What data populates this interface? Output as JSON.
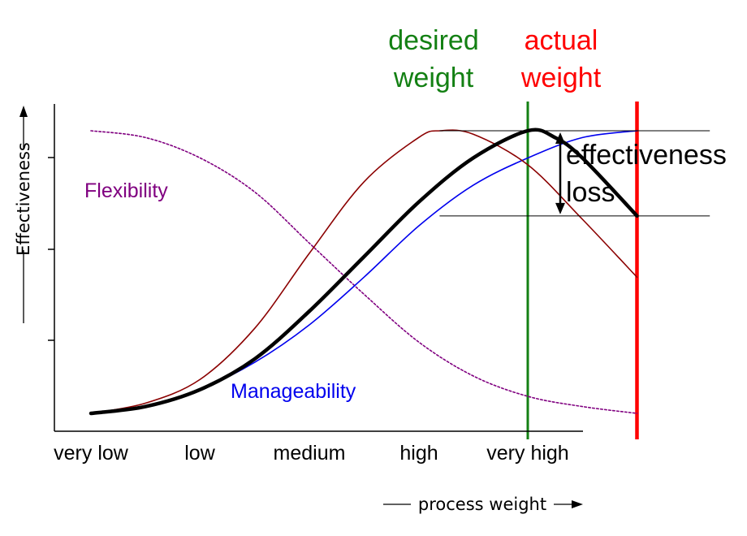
{
  "chart_data": {
    "type": "line",
    "title": "",
    "xlabel": "process weight",
    "ylabel": "Effectiveness",
    "categories": [
      "very low",
      "low",
      "medium",
      "high",
      "very high"
    ],
    "xlim": [
      -0.5,
      5.2
    ],
    "ylim": [
      0,
      1
    ],
    "grid": false,
    "legend": "none",
    "series": [
      {
        "name": "Flexibility",
        "color": "#800080",
        "style": "dotted",
        "x": [
          0.0,
          0.5,
          1.0,
          1.5,
          2.0,
          2.5,
          3.0,
          3.5,
          4.0,
          4.5,
          5.0
        ],
        "y": [
          0.88,
          0.86,
          0.8,
          0.7,
          0.55,
          0.4,
          0.26,
          0.16,
          0.1,
          0.07,
          0.05
        ]
      },
      {
        "name": "Manageability",
        "color": "#0000ee",
        "style": "solid",
        "x": [
          0.0,
          0.5,
          1.0,
          1.5,
          2.0,
          2.5,
          3.0,
          3.5,
          4.0,
          4.5,
          5.0
        ],
        "y": [
          0.05,
          0.07,
          0.12,
          0.2,
          0.31,
          0.45,
          0.6,
          0.72,
          0.8,
          0.86,
          0.88
        ]
      },
      {
        "name": "",
        "color": "#8b0000",
        "style": "solid",
        "x": [
          0.0,
          0.5,
          1.0,
          1.5,
          2.0,
          2.5,
          3.0,
          3.2,
          3.5,
          4.0,
          4.5,
          5.0
        ],
        "y": [
          0.05,
          0.08,
          0.15,
          0.3,
          0.52,
          0.73,
          0.86,
          0.88,
          0.87,
          0.78,
          0.62,
          0.45
        ]
      },
      {
        "name": "",
        "color": "#000000",
        "style": "bold",
        "x": [
          0.0,
          0.5,
          1.0,
          1.5,
          2.0,
          2.5,
          3.0,
          3.5,
          4.0,
          4.25,
          4.5,
          5.0
        ],
        "y": [
          0.05,
          0.07,
          0.12,
          0.21,
          0.35,
          0.51,
          0.67,
          0.8,
          0.88,
          0.86,
          0.8,
          0.63
        ]
      }
    ],
    "vertical_lines": [
      {
        "x": 4.0,
        "label_line1": "desired",
        "label_line2": "weight",
        "color": "#138013"
      },
      {
        "x": 5.0,
        "label_line1": "actual",
        "label_line2": "weight",
        "color": "#ff0000"
      }
    ],
    "loss": {
      "y_top": 0.88,
      "y_bottom": 0.63,
      "x_from": 3.2,
      "x_to": 5.6,
      "label_line1": "effectiveness",
      "label_line2": "loss"
    },
    "annotations": [
      {
        "text": "Flexibility",
        "color": "#800080"
      },
      {
        "text": "Manageability",
        "color": "#0000ee"
      }
    ]
  }
}
